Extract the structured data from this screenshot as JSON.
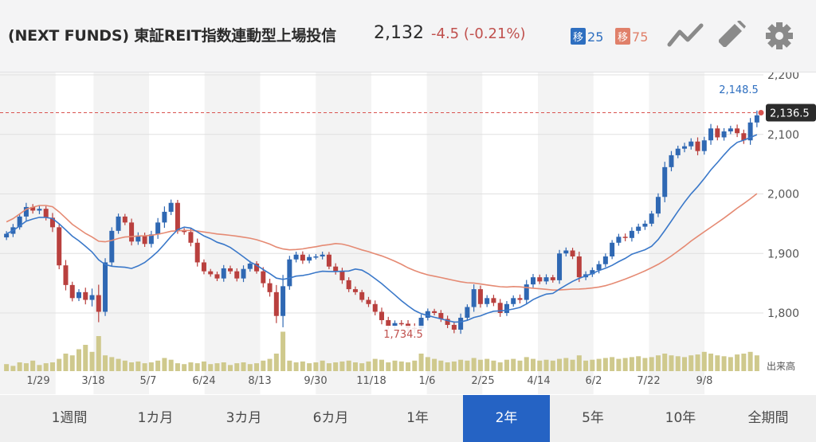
{
  "header": {
    "title": "(NEXT FUNDS) 東証REIT指数連動型上場投信",
    "price": "2,132",
    "change": "-4.5 (-0.21%)",
    "ma_short": {
      "tag": "移",
      "value": "25",
      "color": "#2e6fc0"
    },
    "ma_long": {
      "tag": "移",
      "value": "75",
      "color": "#e0806a"
    },
    "icons": [
      "line-chart-icon",
      "pencil-icon",
      "gear-icon"
    ]
  },
  "chart_data": {
    "type": "candlestick",
    "ylim": [
      1700,
      2210
    ],
    "y_ticks": [
      1800,
      1900,
      2000,
      2100,
      2200
    ],
    "y_tick_labels": [
      "1,800",
      "1,900",
      "2,000",
      "2,100",
      "2,200"
    ],
    "x_tick_labels": [
      "1/29",
      "3/18",
      "5/7",
      "6/24",
      "8/13",
      "9/30",
      "11/18",
      "1/6",
      "2/25",
      "4/14",
      "6/2",
      "7/22",
      "9/8"
    ],
    "current_price_label": "2,136.5",
    "current_price": 2136.5,
    "high_label": "2,148.5",
    "low_label": "1,734.5",
    "volume_label": "出来高",
    "colors": {
      "up": "#2f68b3",
      "down": "#b9403e",
      "ma25": "#3a78c9",
      "ma75": "#e58a73",
      "volume": "#cfc98d",
      "price_line": "#d9534f"
    },
    "closes": [
      1933,
      1944,
      1962,
      1978,
      1972,
      1975,
      1960,
      1944,
      1880,
      1847,
      1825,
      1835,
      1822,
      1830,
      1802,
      1885,
      1938,
      1962,
      1952,
      1920,
      1930,
      1916,
      1932,
      1952,
      1970,
      1985,
      1938,
      1936,
      1918,
      1885,
      1870,
      1865,
      1858,
      1875,
      1870,
      1858,
      1874,
      1883,
      1870,
      1850,
      1835,
      1795,
      1845,
      1890,
      1898,
      1888,
      1894,
      1895,
      1898,
      1878,
      1870,
      1855,
      1840,
      1835,
      1822,
      1815,
      1802,
      1788,
      1778,
      1783,
      1782,
      1775,
      1774,
      1792,
      1803,
      1800,
      1790,
      1780,
      1772,
      1792,
      1810,
      1840,
      1815,
      1825,
      1817,
      1800,
      1815,
      1825,
      1822,
      1848,
      1860,
      1853,
      1860,
      1855,
      1900,
      1905,
      1895,
      1860,
      1865,
      1872,
      1882,
      1895,
      1918,
      1928,
      1926,
      1938,
      1945,
      1950,
      1967,
      1995,
      2045,
      2065,
      2076,
      2080,
      2088,
      2072,
      2090,
      2110,
      2095,
      2105,
      2110,
      2102,
      2090,
      2120,
      2132
    ]
  },
  "tabs": [
    {
      "label": "1週間"
    },
    {
      "label": "1カ月"
    },
    {
      "label": "3カ月"
    },
    {
      "label": "6カ月"
    },
    {
      "label": "1年"
    },
    {
      "label": "2年",
      "active": true
    },
    {
      "label": "5年"
    },
    {
      "label": "10年"
    },
    {
      "label": "全期間"
    }
  ]
}
